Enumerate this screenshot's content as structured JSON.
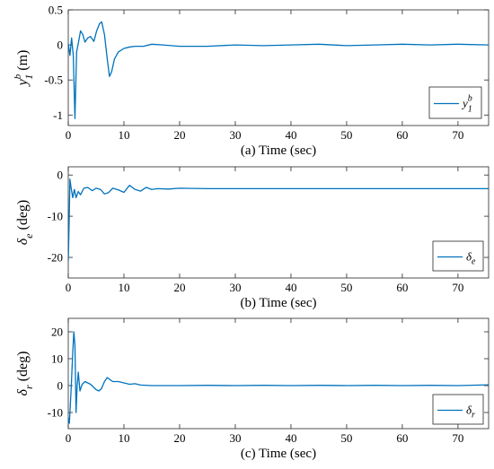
{
  "chart_data": [
    {
      "type": "line",
      "xlabel": "(a) Time (sec)",
      "ylabel": {
        "sym": "y",
        "sub": "1",
        "sup": "b",
        "unit": " (m)"
      },
      "xlim": [
        0,
        75.5
      ],
      "ylim": [
        -1.15,
        0.5
      ],
      "xticks": [
        0,
        10,
        20,
        30,
        40,
        50,
        60,
        70
      ],
      "yticks": [
        0.5,
        0,
        -0.5,
        -1
      ],
      "ytick_labels": [
        "0.5",
        "0",
        "-0.5",
        "-1"
      ],
      "grid": false,
      "legend_position": "bottom-right",
      "series": [
        {
          "name": {
            "sym": "y",
            "sub": "1",
            "sup": "b"
          },
          "color": "#0072BD",
          "points": [
            [
              0,
              0.02
            ],
            [
              0.3,
              -0.15
            ],
            [
              0.6,
              0.1
            ],
            [
              0.9,
              -0.15
            ],
            [
              1.2,
              -1.05
            ],
            [
              1.5,
              -0.1
            ],
            [
              1.8,
              0.02
            ],
            [
              2.2,
              0.2
            ],
            [
              2.6,
              0.15
            ],
            [
              3.0,
              0.04
            ],
            [
              3.5,
              0.1
            ],
            [
              4.0,
              0.12
            ],
            [
              4.6,
              0.05
            ],
            [
              5.1,
              0.2
            ],
            [
              5.6,
              0.3
            ],
            [
              6.0,
              0.33
            ],
            [
              6.5,
              0.15
            ],
            [
              7.0,
              -0.2
            ],
            [
              7.4,
              -0.45
            ],
            [
              7.8,
              -0.38
            ],
            [
              8.3,
              -0.2
            ],
            [
              9.0,
              -0.1
            ],
            [
              10.0,
              -0.05
            ],
            [
              11.0,
              -0.03
            ],
            [
              12.0,
              -0.02
            ],
            [
              13.5,
              -0.02
            ],
            [
              15.0,
              0.01
            ],
            [
              17,
              0.0
            ],
            [
              20,
              -0.02
            ],
            [
              25,
              -0.02
            ],
            [
              30,
              0.0
            ],
            [
              35,
              -0.01
            ],
            [
              40,
              0.0
            ],
            [
              45,
              0.01
            ],
            [
              50,
              -0.01
            ],
            [
              55,
              0.0
            ],
            [
              60,
              0.01
            ],
            [
              65,
              0.0
            ],
            [
              70,
              0.01
            ],
            [
              75.5,
              0.0
            ]
          ]
        }
      ]
    },
    {
      "type": "line",
      "xlabel": "(b) Time (sec)",
      "ylabel": {
        "sym": "δ",
        "sub": "e",
        "sup": "",
        "unit": " (deg)"
      },
      "xlim": [
        0,
        75.5
      ],
      "ylim": [
        -25,
        2
      ],
      "xticks": [
        0,
        10,
        20,
        30,
        40,
        50,
        60,
        70
      ],
      "yticks": [
        0,
        -10,
        -20
      ],
      "ytick_labels": [
        "0",
        "-10",
        "-20"
      ],
      "grid": false,
      "legend_position": "bottom-right",
      "series": [
        {
          "name": {
            "sym": "δ",
            "sub": "e",
            "sup": ""
          },
          "color": "#0072BD",
          "points": [
            [
              0,
              -21
            ],
            [
              0.15,
              -12
            ],
            [
              0.3,
              -1
            ],
            [
              0.5,
              -3
            ],
            [
              0.8,
              -5.5
            ],
            [
              1.1,
              -3.5
            ],
            [
              1.4,
              -5.5
            ],
            [
              1.8,
              -4
            ],
            [
              2.2,
              -4.8
            ],
            [
              2.8,
              -3.2
            ],
            [
              3.5,
              -3.0
            ],
            [
              4.3,
              -3.8
            ],
            [
              5.0,
              -3.2
            ],
            [
              5.8,
              -3.5
            ],
            [
              6.5,
              -4.6
            ],
            [
              7.2,
              -4.3
            ],
            [
              8.0,
              -3.2
            ],
            [
              9.0,
              -3.6
            ],
            [
              10.0,
              -4.2
            ],
            [
              11.0,
              -2.5
            ],
            [
              12.0,
              -3.5
            ],
            [
              13.0,
              -3.9
            ],
            [
              14.0,
              -3.0
            ],
            [
              15.0,
              -3.5
            ],
            [
              16.0,
              -3.3
            ],
            [
              18.0,
              -3.4
            ],
            [
              20.0,
              -3.2
            ],
            [
              25,
              -3.3
            ],
            [
              30,
              -3.3
            ],
            [
              40,
              -3.3
            ],
            [
              50,
              -3.3
            ],
            [
              60,
              -3.3
            ],
            [
              70,
              -3.3
            ],
            [
              75.5,
              -3.3
            ]
          ]
        }
      ]
    },
    {
      "type": "line",
      "xlabel": "(c) Time (sec)",
      "ylabel": {
        "sym": "δ",
        "sub": "r",
        "sup": "",
        "unit": " (deg)"
      },
      "xlim": [
        0,
        75.5
      ],
      "ylim": [
        -16,
        25
      ],
      "xticks": [
        0,
        10,
        20,
        30,
        40,
        50,
        60,
        70
      ],
      "yticks": [
        20,
        10,
        0,
        -10
      ],
      "ytick_labels": [
        "20",
        "10",
        "0",
        "-10"
      ],
      "grid": false,
      "legend_position": "bottom-right",
      "series": [
        {
          "name": {
            "sym": "δ",
            "sub": "r",
            "sup": ""
          },
          "color": "#0072BD",
          "points": [
            [
              0,
              -12
            ],
            [
              0.2,
              -14
            ],
            [
              0.5,
              -2
            ],
            [
              0.8,
              12
            ],
            [
              1.0,
              20
            ],
            [
              1.2,
              15
            ],
            [
              1.4,
              -10
            ],
            [
              1.6,
              0
            ],
            [
              1.8,
              5
            ],
            [
              2.1,
              -2
            ],
            [
              2.5,
              0.5
            ],
            [
              3.0,
              1.5
            ],
            [
              3.5,
              1.0
            ],
            [
              4.0,
              0.5
            ],
            [
              4.5,
              -0.5
            ],
            [
              5.0,
              -1.5
            ],
            [
              5.5,
              -2.0
            ],
            [
              6.0,
              -1.0
            ],
            [
              6.5,
              1.5
            ],
            [
              7.0,
              3.0
            ],
            [
              7.5,
              2.2
            ],
            [
              8.0,
              1.5
            ],
            [
              9.0,
              1.5
            ],
            [
              10.0,
              1.0
            ],
            [
              11.0,
              0.5
            ],
            [
              12.0,
              0.7
            ],
            [
              13.0,
              0.2
            ],
            [
              15.0,
              0.0
            ],
            [
              20.0,
              0.0
            ],
            [
              25,
              0.1
            ],
            [
              30,
              0.0
            ],
            [
              35,
              0.1
            ],
            [
              40,
              0.0
            ],
            [
              45,
              0.1
            ],
            [
              50,
              0.0
            ],
            [
              55,
              0.1
            ],
            [
              60,
              0.0
            ],
            [
              65,
              0.1
            ],
            [
              70,
              0.0
            ],
            [
              75.5,
              0.3
            ]
          ]
        }
      ]
    }
  ]
}
